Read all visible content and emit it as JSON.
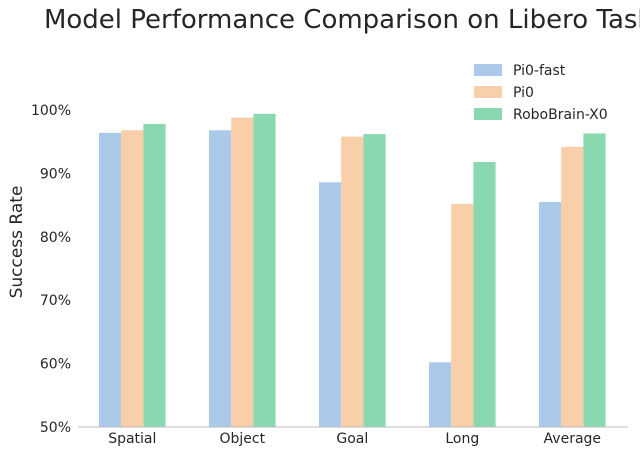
{
  "chart_data": {
    "type": "bar",
    "title": "Model Performance Comparison on Libero Tasks",
    "xlabel": "",
    "ylabel": "Success Rate",
    "ylim": [
      50,
      100
    ],
    "yticks": [
      "50%",
      "60%",
      "70%",
      "80%",
      "90%",
      "100%"
    ],
    "ytick_values": [
      50,
      60,
      70,
      80,
      90,
      100
    ],
    "grid": false,
    "legend_position": "top-right",
    "categories": [
      "Spatial",
      "Object",
      "Goal",
      "Long",
      "Average"
    ],
    "series": [
      {
        "name": "Pi0-fast",
        "color": "#abc9e8",
        "values": [
          96.4,
          96.8,
          88.6,
          60.2,
          85.5
        ]
      },
      {
        "name": "Pi0",
        "color": "#f8cfa9",
        "values": [
          96.8,
          98.8,
          95.8,
          85.2,
          94.2
        ]
      },
      {
        "name": "RoboBrain-X0",
        "color": "#8ad8af",
        "values": [
          97.8,
          99.4,
          96.2,
          91.8,
          96.3
        ]
      }
    ]
  }
}
